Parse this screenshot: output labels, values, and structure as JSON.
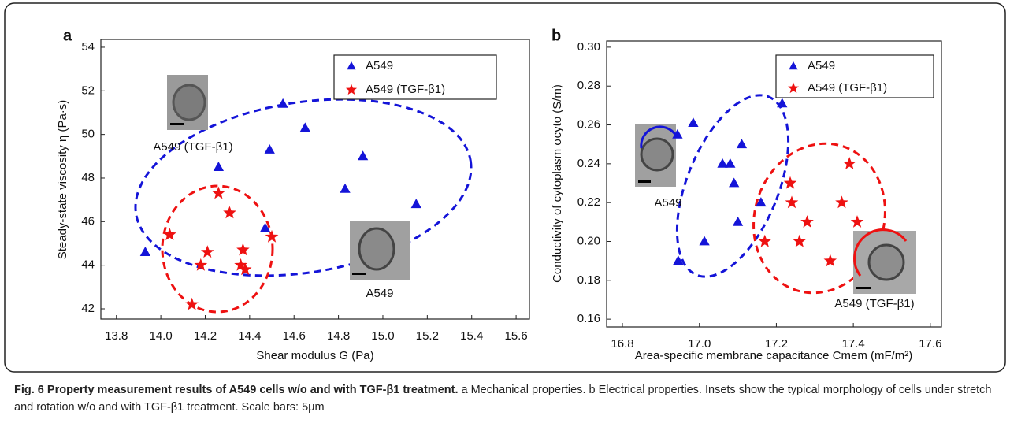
{
  "chart_data": [
    {
      "type": "scatter",
      "panel": "a",
      "x_label": "Shear modulus G (Pa)",
      "y_label": "Steady-state viscosity η (Pa·s)",
      "xlim": [
        13.73,
        15.66
      ],
      "ylim": [
        41.53,
        54.36
      ],
      "xticks": [
        13.8,
        {
          "value": 14.0,
          "label": "14.0"
        },
        14.2,
        14.4,
        14.6,
        14.8,
        {
          "value": 15.0,
          "label": "15.0"
        },
        15.2,
        15.4,
        15.6
      ],
      "yticks": [
        42,
        44,
        46,
        48,
        50,
        52,
        54
      ],
      "legend": "upper right",
      "annotations": [
        "A549 (TGF-β1)",
        "A549"
      ],
      "series": [
        {
          "name": "A549",
          "color": "#1414d8",
          "marker": "triangle",
          "x": [
            13.93,
            14.26,
            14.47,
            14.49,
            14.55,
            14.65,
            14.83,
            14.91,
            15.15
          ],
          "values": [
            44.6,
            48.5,
            45.7,
            49.3,
            51.4,
            50.3,
            47.5,
            49.0,
            46.8
          ]
        },
        {
          "name": "A549 (TGF-β1)",
          "color": "#ee1111",
          "marker": "star",
          "x": [
            14.04,
            14.26,
            14.31,
            14.21,
            14.18,
            14.37,
            14.36,
            14.38,
            14.5,
            14.14
          ],
          "values": [
            45.4,
            47.3,
            46.4,
            44.6,
            44.0,
            44.7,
            44.0,
            43.8,
            45.3,
            42.2
          ]
        }
      ]
    },
    {
      "type": "scatter",
      "panel": "b",
      "x_label": "Area-specific membrane capacitance Cmem (mF/m²)",
      "y_label": "Conductivity of cytoplasm σcyto (S/m)",
      "xlim": [
        16.759,
        17.629
      ],
      "ylim": [
        0.156,
        0.3032
      ],
      "xticks": [
        16.8,
        {
          "value": 17.0,
          "label": "17.0"
        },
        17.2,
        17.4,
        17.6
      ],
      "yticks": [
        0.16,
        0.18,
        {
          "value": 0.2,
          "label": "0.20"
        },
        0.22,
        0.24,
        0.26,
        0.28,
        {
          "value": 0.3,
          "label": "0.30"
        }
      ],
      "legend": "upper right",
      "annotations": [
        "A549",
        "A549 (TGF-β1)"
      ],
      "series": [
        {
          "name": "A549",
          "color": "#1414d8",
          "marker": "triangle",
          "x": [
            16.945,
            17.013,
            16.943,
            16.984,
            17.06,
            17.08,
            17.09,
            17.11,
            17.1,
            17.16,
            17.215
          ],
          "values": [
            0.19,
            0.2,
            0.255,
            0.261,
            0.24,
            0.24,
            0.23,
            0.25,
            0.21,
            0.22,
            0.271
          ]
        },
        {
          "name": "A549 (TGF-β1)",
          "color": "#ee1111",
          "marker": "star",
          "x": [
            17.236,
            17.24,
            17.28,
            17.17,
            17.26,
            17.34,
            17.37,
            17.39,
            17.41
          ],
          "values": [
            0.23,
            0.22,
            0.21,
            0.2,
            0.2,
            0.19,
            0.22,
            0.24,
            0.21
          ]
        }
      ]
    }
  ],
  "caption": {
    "title": "Fig. 6 Property measurement results of A549 cells w/o and with TGF-β1 treatment.",
    "text": "a Mechanical properties. b Electrical properties. Insets show the typical morphology of cells under stretch and rotation w/o and with TGF-β1 treatment. Scale bars: 5μm"
  }
}
